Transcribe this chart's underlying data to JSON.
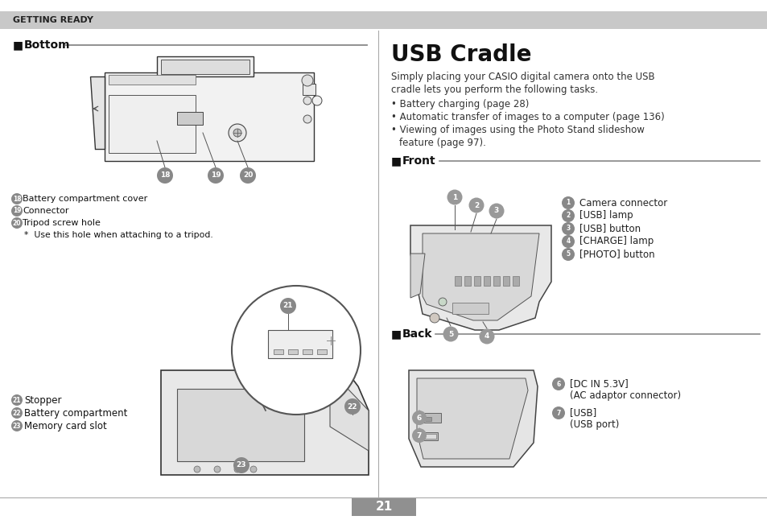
{
  "bg_color": "#ffffff",
  "header_bg": "#c8c8c8",
  "header_text": "GETTING READY",
  "page_number": "21",
  "page_num_bg": "#909090",
  "page_num_color": "#ffffff",
  "left_section_title": "Bottom",
  "label_18": "Battery compartment cover",
  "label_19": "Connector",
  "label_20": "Tripod screw hole",
  "left_note": "*  Use this hole when attaching to a tripod.",
  "label_21": "Stopper",
  "label_22": "Battery compartment",
  "label_23": "Memory card slot",
  "right_title": "USB Cradle",
  "right_intro1": "Simply placing your CASIO digital camera onto the USB",
  "right_intro2": "cradle lets you perform the following tasks.",
  "bullet1": "Battery charging (page 28)",
  "bullet2": "Automatic transfer of images to a computer (page 136)",
  "bullet3": "Viewing of images using the Photo Stand slideshow",
  "bullet3b": "feature (page 97).",
  "front_title": "Front",
  "front_label1": "Camera connector",
  "front_label2": "[USB] lamp",
  "front_label3": "[USB] button",
  "front_label4": "[CHARGE] lamp",
  "front_label5": "[PHOTO] button",
  "back_title": "Back",
  "back_label6a": "[DC IN 5.3V]",
  "back_label6b": "(AC adaptor connector)",
  "back_label7a": "[USB]",
  "back_label7b": "(USB port)"
}
